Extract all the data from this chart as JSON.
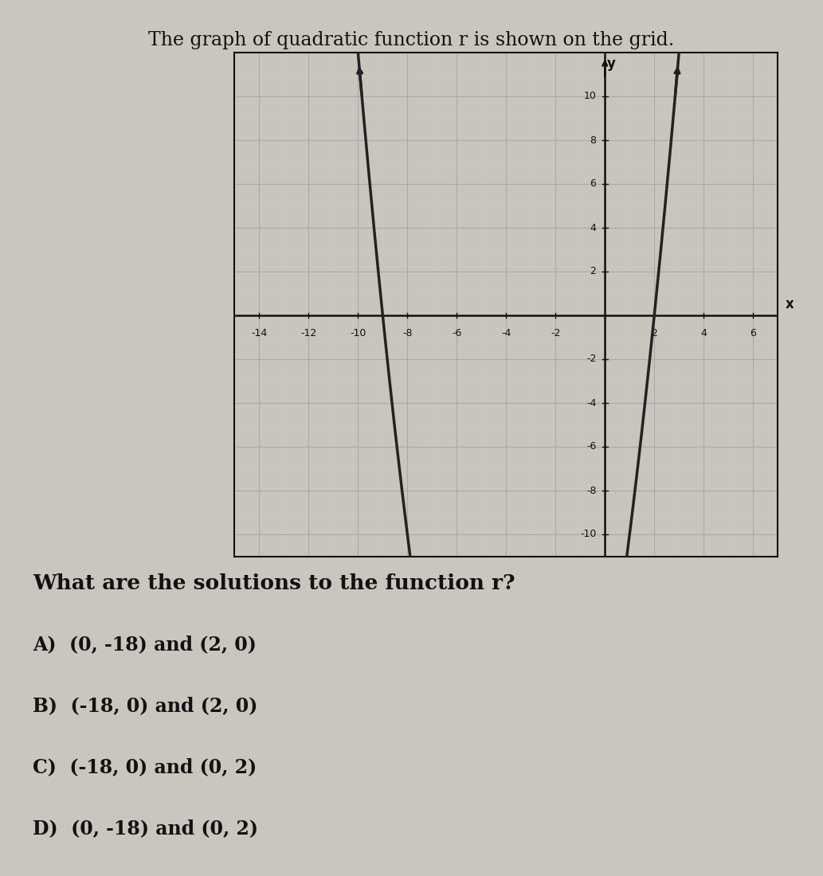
{
  "title": "The graph of quadratic function r is shown on the grid.",
  "question": "What are the solutions to the function r?",
  "answers": [
    "A)  (0, -18) and (2, 0)",
    "B)  (-18, 0) and (2, 0)",
    "C)  (-18, 0) and (0, 2)",
    "D)  (0, -18) and (0, 2)"
  ],
  "xlim": [
    -15,
    7
  ],
  "ylim": [
    -11,
    12
  ],
  "xmin": -14,
  "xmax": 6,
  "ymin": -10,
  "ymax": 10,
  "xtick_vals": [
    -14,
    -12,
    -10,
    -8,
    -6,
    -4,
    -2,
    2,
    4,
    6
  ],
  "ytick_vals": [
    -10,
    -8,
    -6,
    -4,
    -2,
    2,
    4,
    6,
    8,
    10
  ],
  "root1": -9,
  "root2": 2,
  "parabola_color": "#222222",
  "grid_major_color": "#aaaaaa",
  "grid_minor_color": "#cccccc",
  "axis_color": "#111111",
  "paper_color": "#c9c5bf",
  "plot_bg_color": "#c8c4be",
  "spine_color": "#111111",
  "title_fontsize": 17,
  "question_fontsize": 19,
  "answer_fontsize": 17,
  "tick_fontsize": 9
}
